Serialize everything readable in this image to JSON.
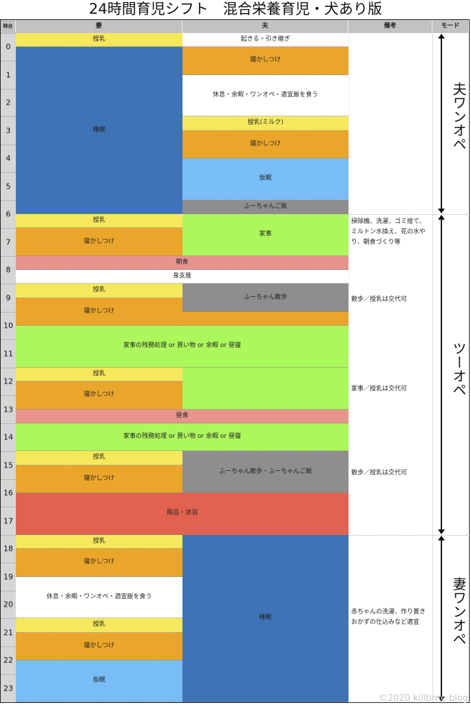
{
  "title": "24時間育児シフト　混合栄養育児・犬あり版",
  "headers": {
    "hour": "時台",
    "wife": "妻",
    "husband": "夫",
    "notes": "備考",
    "mode": "モード"
  },
  "hours": [
    "0",
    "1",
    "2",
    "3",
    "4",
    "5",
    "6",
    "7",
    "8",
    "9",
    "10",
    "11",
    "12",
    "13",
    "14",
    "15",
    "16",
    "17",
    "18",
    "19",
    "20",
    "21",
    "22",
    "23"
  ],
  "colors": {
    "feed": "#f6e85c",
    "sleep": "#3e73b5",
    "soothe": "#eaa52b",
    "nap": "#79bdf6",
    "dog": "#8e8e8e",
    "chores": "#acf75c",
    "meal": "#e8948c",
    "bath": "#e0624f",
    "free": "#ffffff"
  },
  "blocks": [
    {
      "col": "wife",
      "start": -0.5,
      "end": 0,
      "type": "feed",
      "label": "授乳"
    },
    {
      "col": "wife",
      "start": 0,
      "end": 6,
      "type": "sleep",
      "label": "睡眠"
    },
    {
      "col": "wife",
      "start": 6,
      "end": 6.5,
      "type": "feed",
      "label": "授乳"
    },
    {
      "col": "wife",
      "start": 6.5,
      "end": 7.5,
      "type": "soothe",
      "label": "寝かしつけ"
    },
    {
      "col": "both",
      "start": 7.5,
      "end": 8,
      "type": "meal",
      "label": "朝食"
    },
    {
      "col": "both",
      "start": 8,
      "end": 8.5,
      "type": "free",
      "label": "身支度"
    },
    {
      "col": "wife",
      "start": 8.5,
      "end": 9,
      "type": "feed",
      "label": "授乳"
    },
    {
      "col": "wife",
      "start": 9,
      "end": 10,
      "type": "soothe",
      "label": "寝かしつけ"
    },
    {
      "col": "both",
      "start": 10,
      "end": 11.5,
      "type": "chores",
      "label": "家事の残務処理 or 買い物 or 余暇 or 昼寝"
    },
    {
      "col": "wife",
      "start": 11.5,
      "end": 12,
      "type": "feed",
      "label": "授乳"
    },
    {
      "col": "wife",
      "start": 12,
      "end": 13,
      "type": "soothe",
      "label": "寝かしつけ"
    },
    {
      "col": "both",
      "start": 13,
      "end": 13.5,
      "type": "meal",
      "label": "昼食"
    },
    {
      "col": "both",
      "start": 13.5,
      "end": 14.5,
      "type": "chores",
      "label": "家事の残務処理 or 買い物 or 余暇 or 昼寝"
    },
    {
      "col": "wife",
      "start": 14.5,
      "end": 15,
      "type": "feed",
      "label": "授乳"
    },
    {
      "col": "wife",
      "start": 15,
      "end": 16,
      "type": "soothe",
      "label": "寝かしつけ"
    },
    {
      "col": "both",
      "start": 16,
      "end": 17.5,
      "type": "bath",
      "label": "風呂・沐浴"
    },
    {
      "col": "wife",
      "start": 17.5,
      "end": 18,
      "type": "feed",
      "label": "授乳"
    },
    {
      "col": "wife",
      "start": 18,
      "end": 19,
      "type": "soothe",
      "label": "寝かしつけ"
    },
    {
      "col": "wife",
      "start": 19,
      "end": 20.5,
      "type": "free",
      "label": "休息・余暇・ワンオペ・適宜飯を食う"
    },
    {
      "col": "wife",
      "start": 20.5,
      "end": 21,
      "type": "feed",
      "label": "授乳"
    },
    {
      "col": "wife",
      "start": 21,
      "end": 22,
      "type": "soothe",
      "label": "寝かしつけ"
    },
    {
      "col": "wife",
      "start": 22,
      "end": 23.5,
      "type": "nap",
      "label": "仮眠"
    },
    {
      "col": "husband",
      "start": -0.5,
      "end": 0,
      "type": "free",
      "label": "起きる・引き継ぎ"
    },
    {
      "col": "husband",
      "start": 0,
      "end": 1,
      "type": "soothe",
      "label": "寝かしつけ"
    },
    {
      "col": "husband",
      "start": 1,
      "end": 2.5,
      "type": "free",
      "label": "休息・余暇・ワンオペ・適宜飯を食う"
    },
    {
      "col": "husband",
      "start": 2.5,
      "end": 3,
      "type": "feed",
      "label": "授乳(ミルク)"
    },
    {
      "col": "husband",
      "start": 3,
      "end": 4,
      "type": "soothe",
      "label": "寝かしつけ"
    },
    {
      "col": "husband",
      "start": 4,
      "end": 5.5,
      "type": "nap",
      "label": "仮眠"
    },
    {
      "col": "husband",
      "start": 5.5,
      "end": 6,
      "type": "dog",
      "label": "ふーちゃんご飯"
    },
    {
      "col": "husband",
      "start": 6,
      "end": 7.5,
      "type": "chores",
      "label": "家事"
    },
    {
      "col": "husband",
      "start": 8.5,
      "end": 9.5,
      "type": "dog",
      "label": "ふーちゃん散歩"
    },
    {
      "col": "husband",
      "start": 9.5,
      "end": 10,
      "type": "soothe",
      "label": ""
    },
    {
      "col": "husband",
      "start": 11.5,
      "end": 13,
      "type": "chores",
      "label": ""
    },
    {
      "col": "husband",
      "start": 14.5,
      "end": 16,
      "type": "dog",
      "label": "ふーちゃん散歩・ふーちゃんご飯"
    },
    {
      "col": "husband",
      "start": 17.5,
      "end": 23.5,
      "type": "sleep",
      "label": "睡眠"
    }
  ],
  "notes": [
    {
      "at": 6.1,
      "text": "掃除機、洗濯、ゴミ捨て、ミルトン水換え、花の水やり、朝食づくり等"
    },
    {
      "at": 8.9,
      "text": "散歩／授乳は交代可"
    },
    {
      "at": 12.1,
      "text": "家事／授乳は交代可"
    },
    {
      "at": 15.1,
      "text": "散歩／授乳は交代可"
    },
    {
      "at": 20.1,
      "text": "赤ちゃんの洗濯、作り置きおかずの仕込みなど適宜"
    }
  ],
  "modes": [
    {
      "start": -0.5,
      "end": 6,
      "label": "夫ワンオペ"
    },
    {
      "start": 6,
      "end": 17.5,
      "label": "ツーオペ"
    },
    {
      "start": 17.5,
      "end": 23.5,
      "label": "妻ワンオペ"
    }
  ],
  "watermark": "©2020 killtime blog"
}
